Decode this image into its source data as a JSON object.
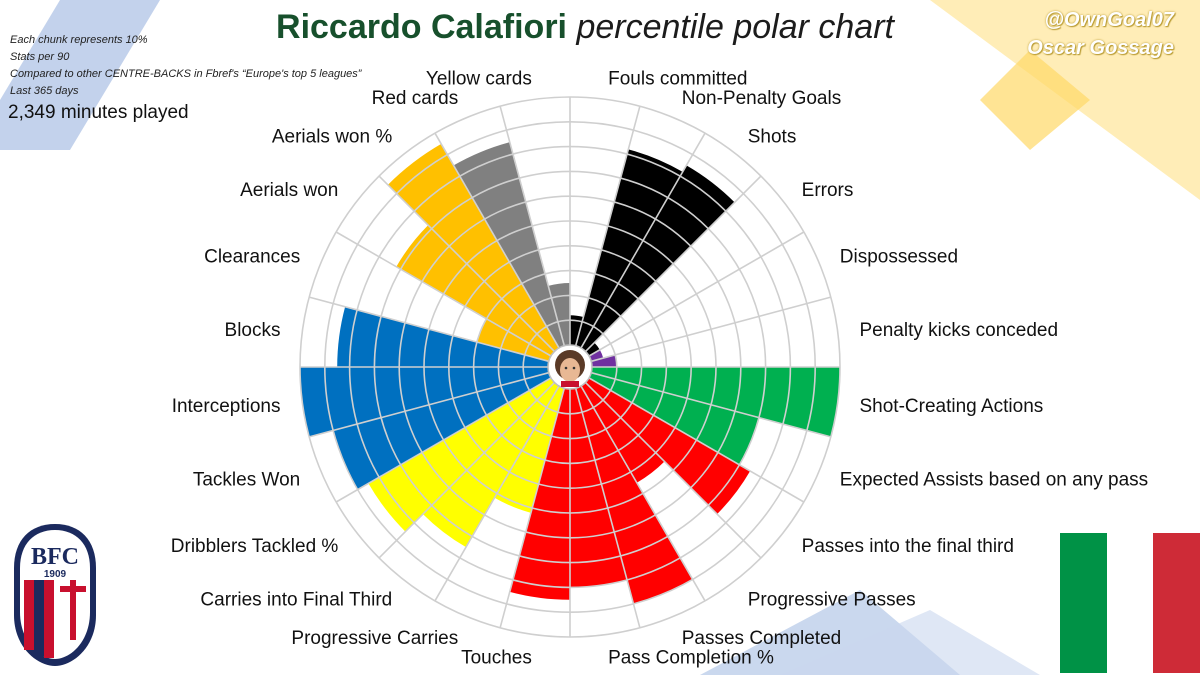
{
  "header": {
    "player_name": "Riccardo Calafiori",
    "title_suffix": "percentile polar chart",
    "notes": [
      "Each chunk represents 10%",
      "Stats per 90",
      "Compared to other CENTRE-BACKS in Fbref's “Europe's top 5 leagues”",
      "Last 365 days"
    ],
    "minutes": "2,349 minutes played",
    "handle": "@OwnGoal07",
    "author": "Oscar Gossage"
  },
  "crest": {
    "letters": "BFC",
    "year": "1909",
    "icon": "bologna-fc-crest"
  },
  "flag": {
    "icon": "italy-flag",
    "colors": [
      "#009246",
      "#ffffff",
      "#ce2b37"
    ]
  },
  "chart_data": {
    "type": "polar",
    "title": "Riccardo Calafiori percentile polar chart",
    "rlim": [
      0,
      100
    ],
    "ring_step": 10,
    "center_image": "player-photo",
    "categories": [
      {
        "label": "Fouls committed",
        "value": 12,
        "color": "#000000"
      },
      {
        "label": "Non-Penalty Goals",
        "value": 82,
        "color": "#000000"
      },
      {
        "label": "Shots",
        "value": 85,
        "color": "#000000"
      },
      {
        "label": "Errors",
        "value": 5,
        "color": "#000000"
      },
      {
        "label": "Dispossessed",
        "value": 5,
        "color": "#7030a0"
      },
      {
        "label": "Penalty kicks conceded",
        "value": 10,
        "color": "#7030a0"
      },
      {
        "label": "Shot-Creating Actions",
        "value": 100,
        "color": "#00b050"
      },
      {
        "label": "Expected Assists based on any pass",
        "value": 70,
        "color": "#00b050"
      },
      {
        "label": "Passes into the final third",
        "value": 75,
        "color": "#ff0000"
      },
      {
        "label": "Progressive Passes",
        "value": 45,
        "color": "#ff0000"
      },
      {
        "label": "Passes Completed",
        "value": 90,
        "color": "#ff0000"
      },
      {
        "label": "Pass Completion %",
        "value": 80,
        "color": "#ff0000"
      },
      {
        "label": "Touches",
        "value": 85,
        "color": "#ff0000"
      },
      {
        "label": "Progressive Carries",
        "value": 52,
        "color": "#ffff00"
      },
      {
        "label": "Carries into Final Third",
        "value": 75,
        "color": "#ffff00"
      },
      {
        "label": "Dribblers Tackled %",
        "value": 85,
        "color": "#ffff00"
      },
      {
        "label": "Tackles Won",
        "value": 90,
        "color": "#0070c0"
      },
      {
        "label": "Interceptions",
        "value": 100,
        "color": "#0070c0"
      },
      {
        "label": "Blocks",
        "value": 85,
        "color": "#0070c0"
      },
      {
        "label": "Clearances",
        "value": 30,
        "color": "#ffc000"
      },
      {
        "label": "Aerials won",
        "value": 72,
        "color": "#ffc000"
      },
      {
        "label": "Aerials won %",
        "value": 95,
        "color": "#ffc000"
      },
      {
        "label": "Red cards",
        "value": 85,
        "color": "#808080"
      },
      {
        "label": "Yellow cards",
        "value": 25,
        "color": "#808080"
      }
    ]
  }
}
